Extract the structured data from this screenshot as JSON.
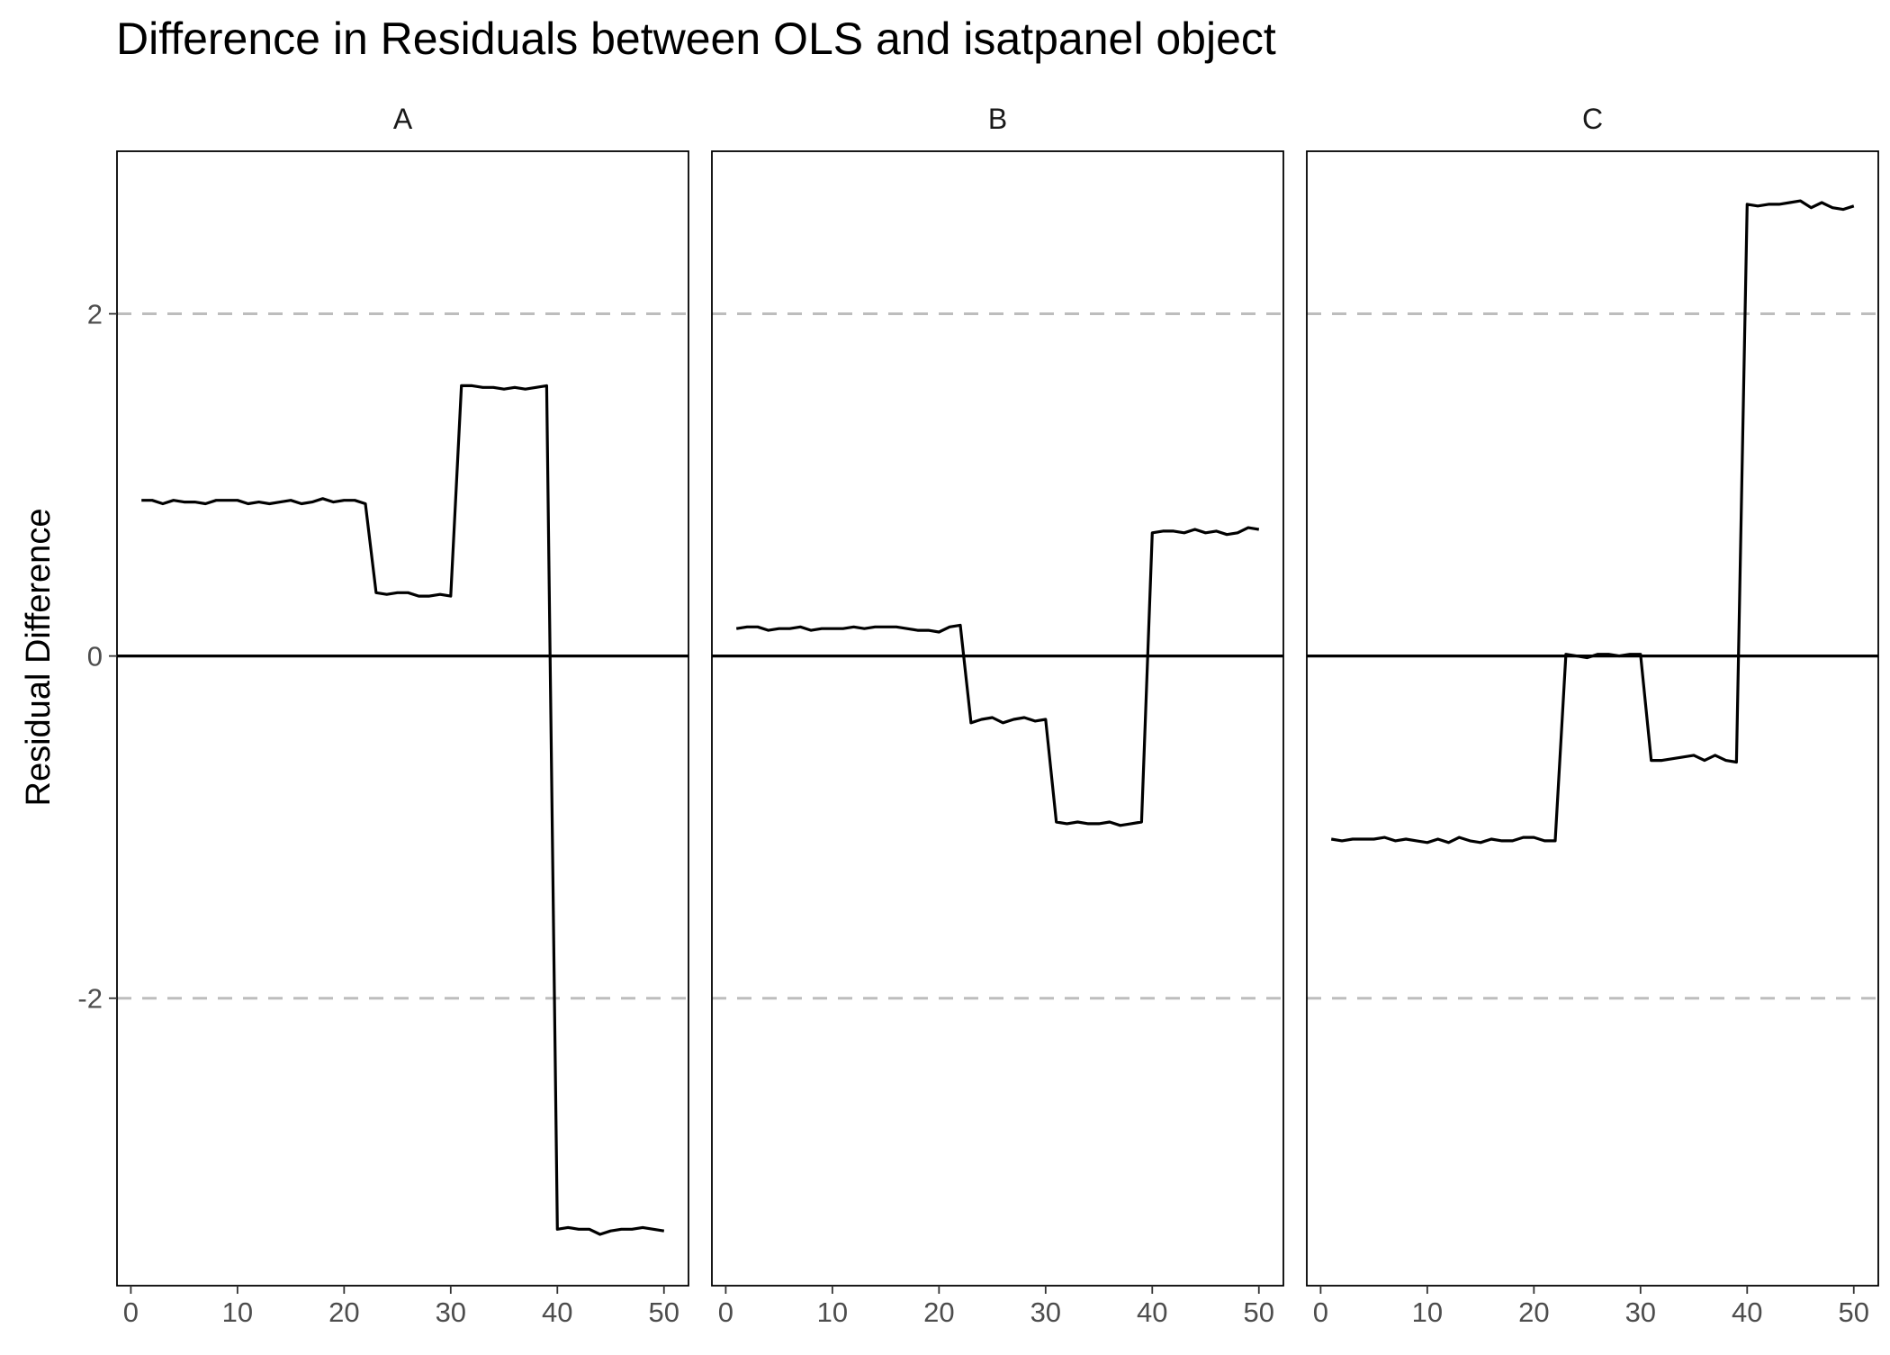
{
  "chart_data": {
    "type": "line",
    "title": "Difference in Residuals between OLS and isatpanel object",
    "xlabel": "",
    "ylabel": "Residual Difference",
    "xlim": [
      -1.3,
      52.3
    ],
    "ylim": [
      -3.68,
      2.95
    ],
    "x_ticks": [
      0,
      10,
      20,
      30,
      40,
      50
    ],
    "y_ticks": [
      -2,
      0,
      2
    ],
    "y_tick_labels": [
      "-2",
      "0",
      "2"
    ],
    "reference_lines": [
      {
        "y": 0,
        "style": "solid",
        "color": "#000000"
      },
      {
        "y": 2,
        "style": "dashed",
        "color": "#bdbdbd"
      },
      {
        "y": -2,
        "style": "dashed",
        "color": "#bdbdbd"
      }
    ],
    "grid": false,
    "line_color": "#000000",
    "x": [
      1,
      2,
      3,
      4,
      5,
      6,
      7,
      8,
      9,
      10,
      11,
      12,
      13,
      14,
      15,
      16,
      17,
      18,
      19,
      20,
      21,
      22,
      23,
      24,
      25,
      26,
      27,
      28,
      29,
      30,
      31,
      32,
      33,
      34,
      35,
      36,
      37,
      38,
      39,
      40,
      41,
      42,
      43,
      44,
      45,
      46,
      47,
      48,
      49,
      50
    ],
    "panels": [
      {
        "name": "A",
        "values": [
          0.91,
          0.91,
          0.89,
          0.91,
          0.9,
          0.9,
          0.89,
          0.91,
          0.91,
          0.91,
          0.89,
          0.9,
          0.89,
          0.9,
          0.91,
          0.89,
          0.9,
          0.92,
          0.9,
          0.91,
          0.91,
          0.89,
          0.37,
          0.36,
          0.37,
          0.37,
          0.35,
          0.35,
          0.36,
          0.35,
          1.58,
          1.58,
          1.57,
          1.57,
          1.56,
          1.57,
          1.56,
          1.57,
          1.58,
          -3.35,
          -3.34,
          -3.35,
          -3.35,
          -3.38,
          -3.36,
          -3.35,
          -3.35,
          -3.34,
          -3.35,
          -3.36
        ]
      },
      {
        "name": "B",
        "values": [
          0.16,
          0.17,
          0.17,
          0.15,
          0.16,
          0.16,
          0.17,
          0.15,
          0.16,
          0.16,
          0.16,
          0.17,
          0.16,
          0.17,
          0.17,
          0.17,
          0.16,
          0.15,
          0.15,
          0.14,
          0.17,
          0.18,
          -0.39,
          -0.37,
          -0.36,
          -0.39,
          -0.37,
          -0.36,
          -0.38,
          -0.37,
          -0.97,
          -0.98,
          -0.97,
          -0.98,
          -0.98,
          -0.97,
          -0.99,
          -0.98,
          -0.97,
          0.72,
          0.73,
          0.73,
          0.72,
          0.74,
          0.72,
          0.73,
          0.71,
          0.72,
          0.75,
          0.74
        ]
      },
      {
        "name": "C",
        "values": [
          -1.07,
          -1.08,
          -1.07,
          -1.07,
          -1.07,
          -1.06,
          -1.08,
          -1.07,
          -1.08,
          -1.09,
          -1.07,
          -1.09,
          -1.06,
          -1.08,
          -1.09,
          -1.07,
          -1.08,
          -1.08,
          -1.06,
          -1.06,
          -1.08,
          -1.08,
          0.01,
          0.0,
          -0.01,
          0.01,
          0.01,
          0.0,
          0.01,
          0.01,
          -0.61,
          -0.61,
          -0.6,
          -0.59,
          -0.58,
          -0.61,
          -0.58,
          -0.61,
          -0.62,
          2.64,
          2.63,
          2.64,
          2.64,
          2.65,
          2.66,
          2.62,
          2.65,
          2.62,
          2.61,
          2.63
        ]
      }
    ]
  }
}
